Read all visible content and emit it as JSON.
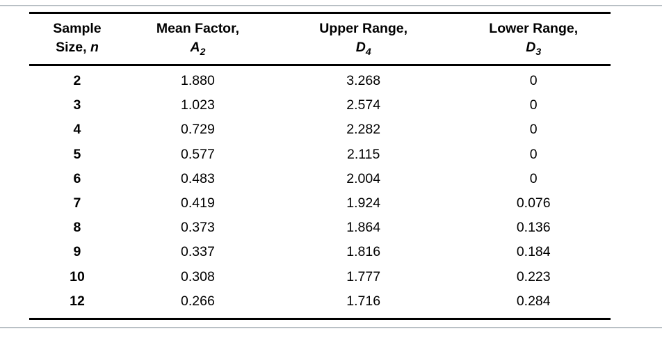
{
  "page": {
    "background": "#ffffff",
    "rule_color": "#b9c0c5",
    "line_color": "#000000"
  },
  "table": {
    "header": {
      "col1": {
        "line1": "Sample",
        "line2_text": "Size, ",
        "symbol": "n",
        "subscript": ""
      },
      "col2": {
        "line1": "Mean Factor,",
        "line2_text": "",
        "symbol": "A",
        "subscript": "2"
      },
      "col3": {
        "line1": "Upper Range,",
        "line2_text": "",
        "symbol": "D",
        "subscript": "4"
      },
      "col4": {
        "line1": "Lower Range,",
        "line2_text": "",
        "symbol": "D",
        "subscript": "3"
      }
    },
    "rows": [
      [
        "2",
        "1.880",
        "3.268",
        "0"
      ],
      [
        "3",
        "1.023",
        "2.574",
        "0"
      ],
      [
        "4",
        "0.729",
        "2.282",
        "0"
      ],
      [
        "5",
        "0.577",
        "2.115",
        "0"
      ],
      [
        "6",
        "0.483",
        "2.004",
        "0"
      ],
      [
        "7",
        "0.419",
        "1.924",
        "0.076"
      ],
      [
        "8",
        "0.373",
        "1.864",
        "0.136"
      ],
      [
        "9",
        "0.337",
        "1.816",
        "0.184"
      ],
      [
        "10",
        "0.308",
        "1.777",
        "0.223"
      ],
      [
        "12",
        "0.266",
        "1.716",
        "0.284"
      ]
    ]
  }
}
